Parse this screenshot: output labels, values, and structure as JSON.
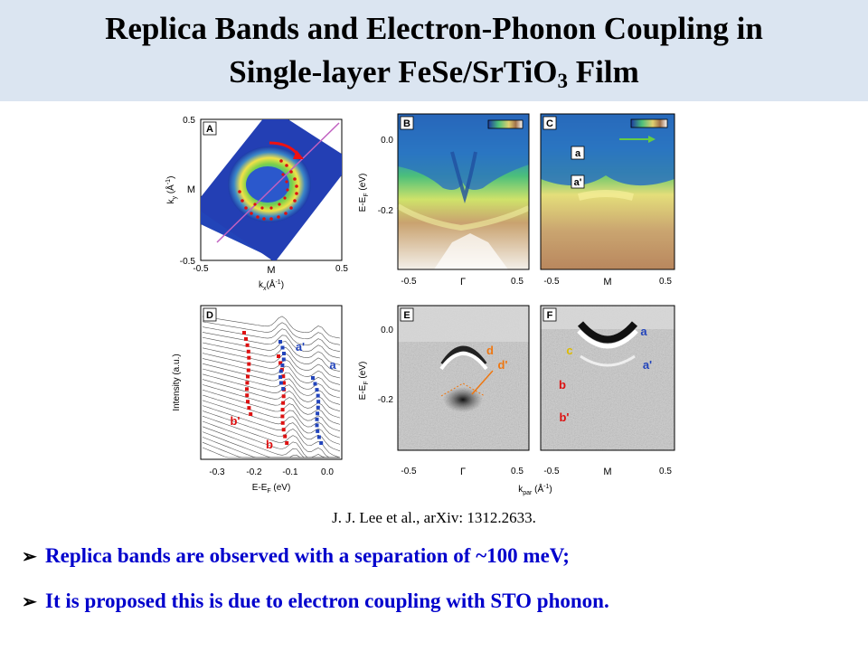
{
  "title": {
    "line1": "Replica Bands and Electron-Phonon Coupling in",
    "line2_prefix": "Single-layer FeSe/SrTiO",
    "line2_sub": "3",
    "line2_suffix": " Film"
  },
  "figure": {
    "panels": {
      "A": "A",
      "B": "B",
      "C": "C",
      "D": "D",
      "E": "E",
      "F": "F"
    },
    "panel_a": {
      "ylabel": "k",
      "ylabel_sub": "y",
      "ylabel_unit": " (Å",
      "ylabel_unit_sup": "-1",
      "ylabel_close": ")",
      "xlabel": "k",
      "xlabel_sub": "x",
      "xlabel_unit": "(Å",
      "xlabel_unit_sup": "-1",
      "xlabel_close": ")",
      "y_ticks": [
        "0.5",
        "M",
        "-0.5"
      ],
      "x_ticks": [
        "-0.5",
        "M",
        "0.5"
      ]
    },
    "panel_b": {
      "y_ticks": [
        "0.0",
        "-0.2"
      ],
      "x_ticks": [
        "-0.5",
        "Γ",
        "0.5"
      ],
      "ylabel": "E-E",
      "ylabel_sub": "F",
      "ylabel_unit": " (eV)"
    },
    "panel_c": {
      "x_ticks": [
        "-0.5",
        "M",
        "0.5"
      ],
      "band_labels": [
        "a",
        "a'"
      ]
    },
    "panel_d": {
      "ylabel": "Intensity (a.u.)",
      "xlabel": "E-E",
      "xlabel_sub": "F",
      "xlabel_unit": " (eV)",
      "x_ticks": [
        "-0.3",
        "-0.2",
        "-0.1",
        "0.0"
      ],
      "band_labels": [
        "a'",
        "a",
        "b'",
        "b"
      ]
    },
    "panel_e": {
      "y_ticks": [
        "0.0",
        "-0.2"
      ],
      "x_ticks": [
        "-0.5",
        "Γ",
        "0.5"
      ],
      "ylabel": "E-E",
      "ylabel_sub": "F",
      "ylabel_unit": " (eV)",
      "band_labels": [
        "d",
        "d'"
      ]
    },
    "panel_f": {
      "x_ticks": [
        "-0.5",
        "M",
        "0.5"
      ],
      "band_labels": [
        "a",
        "c",
        "a'",
        "b",
        "b'"
      ]
    },
    "shared_xlabel": "k",
    "shared_xlabel_sub": "par",
    "shared_xlabel_unit": " (Å",
    "shared_xlabel_sup": "-1",
    "shared_xlabel_close": ")"
  },
  "citation": "J. J. Lee  et al., arXiv: 1312.2633.",
  "bullets": [
    "Replica bands are observed with a separation of ~100 meV;",
    "It is proposed this is due to electron coupling with STO phonon."
  ],
  "bullet_marker": "➢",
  "colors": {
    "header_bg": "#dbe5f1",
    "bullet_text": "#0000cc",
    "band_red": "#dd1111",
    "band_blue": "#2244bb",
    "label_orange": "#ee7711",
    "label_yellow": "#ddbb00"
  }
}
